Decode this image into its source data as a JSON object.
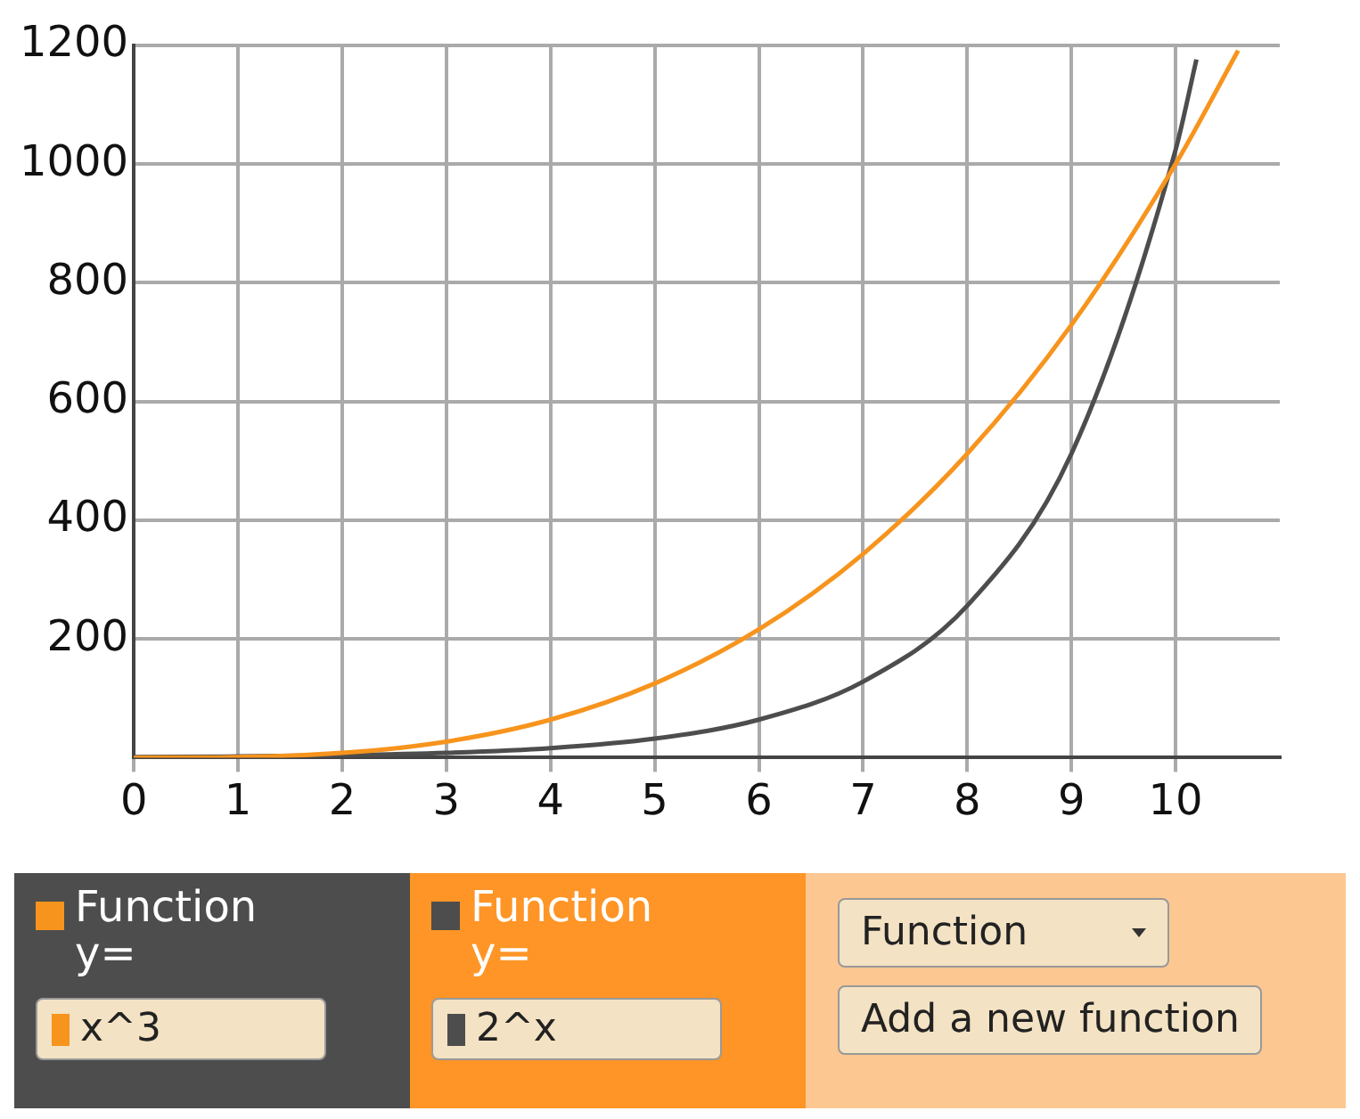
{
  "chart_data": {
    "type": "line",
    "series": [
      {
        "name": "x^3",
        "color": "#f7941d",
        "x": [
          0,
          1,
          2,
          3,
          4,
          5,
          6,
          7,
          8,
          9,
          10,
          10.6
        ],
        "values": [
          0,
          1,
          8,
          27,
          64,
          125,
          216,
          343,
          512,
          729,
          1000,
          1191
        ]
      },
      {
        "name": "2^x",
        "color": "#4d4d4d",
        "x": [
          0,
          1,
          2,
          3,
          4,
          5,
          6,
          7,
          8,
          9,
          10,
          10.2
        ],
        "values": [
          1,
          2,
          4,
          8,
          16,
          32,
          64,
          128,
          256,
          512,
          1024,
          1176
        ]
      }
    ],
    "xlim": [
      0,
      11
    ],
    "xticks": [
      0,
      1,
      2,
      3,
      4,
      5,
      6,
      7,
      8,
      9,
      10
    ],
    "ylim": [
      0,
      1200
    ],
    "yticks": [
      200,
      400,
      600,
      800,
      1000,
      1200
    ],
    "grid": true,
    "marker": "none",
    "line_style": "solid",
    "legend": "bottom",
    "annotations": [
      "Function",
      "y=",
      "Function",
      "Add a new function"
    ]
  }
}
